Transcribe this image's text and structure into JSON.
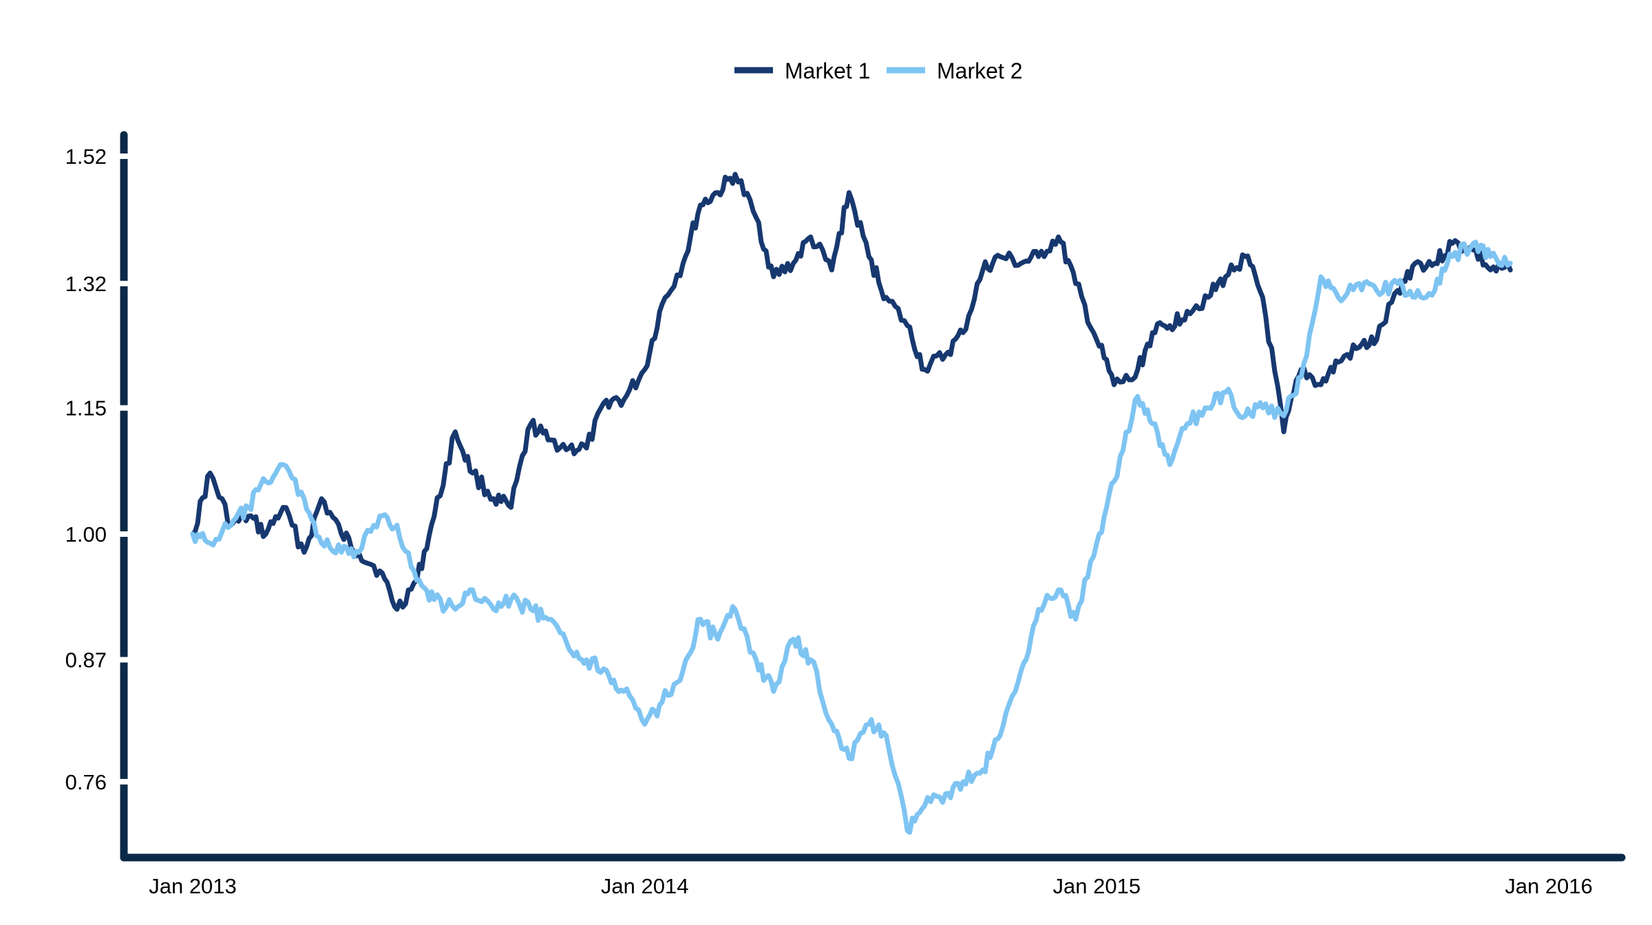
{
  "chart_data": {
    "type": "line",
    "title": "",
    "xlabel": "",
    "ylabel": "",
    "legend_position": "top-center",
    "grid": false,
    "x_axis": {
      "type": "date",
      "range": [
        "2013-01-01",
        "2016-01-01"
      ],
      "ticks": [
        {
          "value": "2013-01-01",
          "label": "Jan 2013"
        },
        {
          "value": "2014-01-01",
          "label": "Jan 2014"
        },
        {
          "value": "2015-01-01",
          "label": "Jan 2015"
        },
        {
          "value": "2016-01-01",
          "label": "Jan 2016"
        }
      ]
    },
    "y_axis": {
      "scale": "log",
      "range": [
        0.68,
        1.57
      ],
      "ticks": [
        {
          "value": 0.76,
          "label": "0.76"
        },
        {
          "value": 0.87,
          "label": "0.87"
        },
        {
          "value": 1.0,
          "label": "1.00"
        },
        {
          "value": 1.15,
          "label": "1.15"
        },
        {
          "value": 1.32,
          "label": "1.32"
        },
        {
          "value": 1.52,
          "label": "1.52"
        }
      ]
    },
    "series": [
      {
        "name": "Market 1",
        "color": "#17386f",
        "points": [
          [
            "2013-01-01",
            1.0
          ],
          [
            "2013-01-15",
            1.07
          ],
          [
            "2013-02-01",
            1.01
          ],
          [
            "2013-02-15",
            1.02
          ],
          [
            "2013-03-01",
            1.0
          ],
          [
            "2013-03-15",
            1.03
          ],
          [
            "2013-04-01",
            0.98
          ],
          [
            "2013-04-15",
            1.04
          ],
          [
            "2013-05-01",
            1.0
          ],
          [
            "2013-05-15",
            0.98
          ],
          [
            "2013-06-01",
            0.96
          ],
          [
            "2013-06-15",
            0.92
          ],
          [
            "2013-07-01",
            0.95
          ],
          [
            "2013-07-15",
            1.02
          ],
          [
            "2013-08-01",
            1.12
          ],
          [
            "2013-08-15",
            1.07
          ],
          [
            "2013-09-01",
            1.04
          ],
          [
            "2013-09-15",
            1.03
          ],
          [
            "2013-10-01",
            1.13
          ],
          [
            "2013-10-15",
            1.11
          ],
          [
            "2013-11-01",
            1.1
          ],
          [
            "2013-11-15",
            1.1
          ],
          [
            "2013-12-01",
            1.16
          ],
          [
            "2013-12-15",
            1.16
          ],
          [
            "2014-01-01",
            1.2
          ],
          [
            "2014-01-15",
            1.29
          ],
          [
            "2014-02-01",
            1.35
          ],
          [
            "2014-02-15",
            1.44
          ],
          [
            "2014-03-01",
            1.46
          ],
          [
            "2014-03-15",
            1.49
          ],
          [
            "2014-04-01",
            1.42
          ],
          [
            "2014-04-15",
            1.33
          ],
          [
            "2014-05-01",
            1.35
          ],
          [
            "2014-05-15",
            1.39
          ],
          [
            "2014-06-01",
            1.34
          ],
          [
            "2014-06-15",
            1.46
          ],
          [
            "2014-07-01",
            1.36
          ],
          [
            "2014-07-15",
            1.3
          ],
          [
            "2014-08-01",
            1.26
          ],
          [
            "2014-08-15",
            1.2
          ],
          [
            "2014-09-01",
            1.22
          ],
          [
            "2014-09-15",
            1.25
          ],
          [
            "2014-10-01",
            1.34
          ],
          [
            "2014-10-15",
            1.36
          ],
          [
            "2014-11-01",
            1.35
          ],
          [
            "2014-11-15",
            1.36
          ],
          [
            "2014-12-01",
            1.39
          ],
          [
            "2014-12-15",
            1.32
          ],
          [
            "2015-01-01",
            1.24
          ],
          [
            "2015-01-15",
            1.18
          ],
          [
            "2015-02-01",
            1.19
          ],
          [
            "2015-02-15",
            1.25
          ],
          [
            "2015-03-01",
            1.26
          ],
          [
            "2015-03-15",
            1.28
          ],
          [
            "2015-04-01",
            1.3
          ],
          [
            "2015-04-15",
            1.33
          ],
          [
            "2015-05-01",
            1.36
          ],
          [
            "2015-05-15",
            1.3
          ],
          [
            "2015-06-01",
            1.12
          ],
          [
            "2015-06-15",
            1.2
          ],
          [
            "2015-07-01",
            1.18
          ],
          [
            "2015-07-15",
            1.21
          ],
          [
            "2015-08-01",
            1.23
          ],
          [
            "2015-08-15",
            1.24
          ],
          [
            "2015-09-01",
            1.31
          ],
          [
            "2015-09-15",
            1.35
          ],
          [
            "2015-10-01",
            1.35
          ],
          [
            "2015-10-15",
            1.38
          ],
          [
            "2015-11-01",
            1.37
          ],
          [
            "2015-11-15",
            1.34
          ],
          [
            "2015-12-01",
            1.34
          ]
        ]
      },
      {
        "name": "Market 2",
        "color": "#7ec4f2",
        "points": [
          [
            "2013-01-01",
            1.0
          ],
          [
            "2013-01-15",
            0.99
          ],
          [
            "2013-02-01",
            1.01
          ],
          [
            "2013-02-15",
            1.03
          ],
          [
            "2013-03-01",
            1.06
          ],
          [
            "2013-03-15",
            1.08
          ],
          [
            "2013-04-01",
            1.04
          ],
          [
            "2013-04-15",
            0.99
          ],
          [
            "2013-05-01",
            0.98
          ],
          [
            "2013-05-15",
            0.98
          ],
          [
            "2013-06-01",
            1.02
          ],
          [
            "2013-06-15",
            1.01
          ],
          [
            "2013-07-01",
            0.95
          ],
          [
            "2013-07-15",
            0.93
          ],
          [
            "2013-08-01",
            0.92
          ],
          [
            "2013-08-15",
            0.94
          ],
          [
            "2013-09-01",
            0.92
          ],
          [
            "2013-09-15",
            0.93
          ],
          [
            "2013-10-01",
            0.92
          ],
          [
            "2013-10-15",
            0.91
          ],
          [
            "2013-11-01",
            0.88
          ],
          [
            "2013-11-15",
            0.87
          ],
          [
            "2013-12-01",
            0.86
          ],
          [
            "2013-12-15",
            0.84
          ],
          [
            "2014-01-01",
            0.81
          ],
          [
            "2014-01-15",
            0.83
          ],
          [
            "2014-02-01",
            0.86
          ],
          [
            "2014-02-15",
            0.91
          ],
          [
            "2014-03-01",
            0.89
          ],
          [
            "2014-03-15",
            0.92
          ],
          [
            "2014-04-01",
            0.87
          ],
          [
            "2014-04-15",
            0.84
          ],
          [
            "2014-05-01",
            0.89
          ],
          [
            "2014-05-15",
            0.87
          ],
          [
            "2014-06-01",
            0.81
          ],
          [
            "2014-06-15",
            0.78
          ],
          [
            "2014-07-01",
            0.81
          ],
          [
            "2014-07-15",
            0.8
          ],
          [
            "2014-08-01",
            0.72
          ],
          [
            "2014-08-15",
            0.74
          ],
          [
            "2014-09-01",
            0.75
          ],
          [
            "2014-09-15",
            0.76
          ],
          [
            "2014-10-01",
            0.77
          ],
          [
            "2014-10-15",
            0.8
          ],
          [
            "2014-11-01",
            0.86
          ],
          [
            "2014-11-15",
            0.92
          ],
          [
            "2014-12-01",
            0.94
          ],
          [
            "2014-12-15",
            0.91
          ],
          [
            "2015-01-01",
            0.99
          ],
          [
            "2015-01-15",
            1.06
          ],
          [
            "2015-02-01",
            1.16
          ],
          [
            "2015-02-15",
            1.13
          ],
          [
            "2015-03-01",
            1.08
          ],
          [
            "2015-03-15",
            1.13
          ],
          [
            "2015-04-01",
            1.15
          ],
          [
            "2015-04-15",
            1.17
          ],
          [
            "2015-05-01",
            1.14
          ],
          [
            "2015-05-15",
            1.15
          ],
          [
            "2015-06-01",
            1.14
          ],
          [
            "2015-06-15",
            1.19
          ],
          [
            "2015-07-01",
            1.33
          ],
          [
            "2015-07-15",
            1.3
          ],
          [
            "2015-08-01",
            1.32
          ],
          [
            "2015-08-15",
            1.31
          ],
          [
            "2015-09-01",
            1.32
          ],
          [
            "2015-09-15",
            1.3
          ],
          [
            "2015-10-01",
            1.31
          ],
          [
            "2015-10-15",
            1.36
          ],
          [
            "2015-11-01",
            1.38
          ],
          [
            "2015-11-15",
            1.36
          ],
          [
            "2015-12-01",
            1.35
          ]
        ]
      }
    ]
  }
}
